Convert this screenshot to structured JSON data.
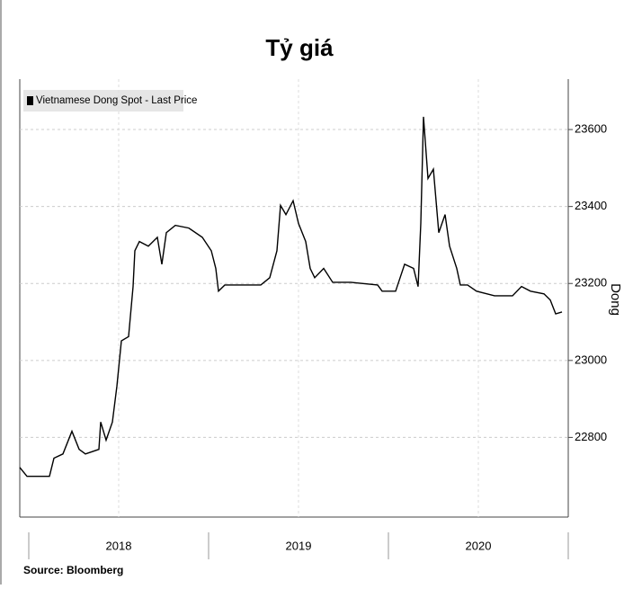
{
  "chart_data": {
    "type": "line",
    "title": "Tỷ giá",
    "legend": "Vietnamese Dong Spot - Last Price",
    "y_label": "Dong",
    "source": "Source: Bloomberg",
    "x": [
      2017.95,
      2017.99,
      2018.115,
      2018.14,
      2018.19,
      2018.24,
      2018.28,
      2018.315,
      2018.39,
      2018.4,
      2018.43,
      2018.465,
      2018.49,
      2018.515,
      2018.555,
      2018.58,
      2018.59,
      2018.615,
      2018.665,
      2018.715,
      2018.74,
      2018.765,
      2018.815,
      2018.89,
      2018.965,
      2019.015,
      2019.04,
      2019.055,
      2019.09,
      2019.19,
      2019.29,
      2019.34,
      2019.38,
      2019.4,
      2019.43,
      2019.47,
      2019.5,
      2019.54,
      2019.565,
      2019.59,
      2019.64,
      2019.69,
      2019.79,
      2019.94,
      2019.965,
      2020.04,
      2020.065,
      2020.09,
      2020.14,
      2020.165,
      2020.18,
      2020.195,
      2020.22,
      2020.25,
      2020.28,
      2020.315,
      2020.34,
      2020.38,
      2020.4,
      2020.44,
      2020.49,
      2020.59,
      2020.69,
      2020.74,
      2020.79,
      2020.865,
      2020.9,
      2020.93,
      2020.965
    ],
    "series": [
      {
        "name": "Vietnamese Dong Spot - Last Price",
        "color": "#000000",
        "values": [
          22722,
          22699,
          22699,
          22746,
          22757,
          22816,
          22769,
          22757,
          22769,
          22840,
          22793,
          22840,
          22933,
          23051,
          23062,
          23192,
          23285,
          23309,
          23297,
          23320,
          23250,
          23332,
          23351,
          23344,
          23320,
          23285,
          23239,
          23180,
          23196,
          23196,
          23196,
          23215,
          23285,
          23403,
          23379,
          23415,
          23356,
          23309,
          23239,
          23215,
          23239,
          23203,
          23203,
          23196,
          23180,
          23180,
          23215,
          23250,
          23239,
          23192,
          23356,
          23633,
          23473,
          23497,
          23332,
          23379,
          23297,
          23239,
          23196,
          23196,
          23180,
          23168,
          23168,
          23192,
          23180,
          23173,
          23157,
          23121,
          23126
        ]
      }
    ],
    "xlim": [
      2017.95,
      2021.0
    ],
    "xticks": [
      {
        "value": 2018.5,
        "label": "2018"
      },
      {
        "value": 2019.5,
        "label": "2019"
      },
      {
        "value": 2020.5,
        "label": "2020"
      }
    ],
    "ylim": [
      22593,
      23731
    ],
    "yticks": [
      22800,
      23000,
      23200,
      23400,
      23600
    ],
    "grid": true
  }
}
